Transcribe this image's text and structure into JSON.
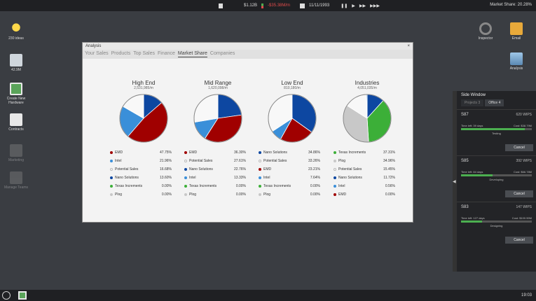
{
  "topbar": {
    "money": "$1.12B",
    "change": "-$35.38M/m",
    "date": "11/11/1993",
    "market_share": "Market Share: 20.28%"
  },
  "desktop": {
    "left": [
      {
        "label": "230 ideas",
        "icon": "lightbulb-icon"
      },
      {
        "label": "42.9M",
        "icon": "factory-icon"
      },
      {
        "label": "Create New Hardware",
        "icon": "hardware-icon"
      },
      {
        "label": "Contracts",
        "icon": "contracts-icon"
      },
      {
        "label": "Marketing",
        "icon": "megaphone-icon"
      },
      {
        "label": "Manage Teams",
        "icon": "teams-icon"
      }
    ],
    "right": [
      {
        "label": "Inspector",
        "icon": "magnifier-icon"
      },
      {
        "label": "Email",
        "icon": "mail-icon"
      },
      {
        "label": "Analysis",
        "icon": "analysis-icon"
      }
    ]
  },
  "window": {
    "title": "Analysis",
    "close": "×",
    "tabs": [
      "Your Sales",
      "Products",
      "Top Sales",
      "Finance",
      "Market Share",
      "Companies"
    ],
    "active_tab": 4
  },
  "colors": {
    "red": "#a00000",
    "blue": "#0d47a1",
    "lightblue": "#3a8fd9",
    "white": "#f8f8f8",
    "green": "#3caf38",
    "grey": "#c8c8c8"
  },
  "charts": [
    {
      "title": "High End",
      "subtitle": "2,531,985/m",
      "legend": [
        {
          "name": "EMD",
          "value": "47.75%",
          "color": "red",
          "v": 47.75
        },
        {
          "name": "Intel",
          "value": "21.96%",
          "color": "lightblue",
          "v": 21.96
        },
        {
          "name": "Potential Sales",
          "value": "16.68%",
          "color": "white",
          "v": 16.68
        },
        {
          "name": "Nano Solutions",
          "value": "13.60%",
          "color": "blue",
          "v": 13.6
        },
        {
          "name": "Texas Increments",
          "value": "0.00%",
          "color": "green",
          "v": 0
        },
        {
          "name": "Plog",
          "value": "0.00%",
          "color": "grey",
          "v": 0
        }
      ],
      "order": [
        "Nano Solutions",
        "EMD",
        "Intel",
        "Potential Sales"
      ]
    },
    {
      "title": "Mid Range",
      "subtitle": "1,620,098/m",
      "legend": [
        {
          "name": "EMD",
          "value": "36.30%",
          "color": "red",
          "v": 36.3
        },
        {
          "name": "Potential Sales",
          "value": "27.61%",
          "color": "white",
          "v": 27.61
        },
        {
          "name": "Nano Solutions",
          "value": "22.76%",
          "color": "blue",
          "v": 22.76
        },
        {
          "name": "Intel",
          "value": "13.33%",
          "color": "lightblue",
          "v": 13.33
        },
        {
          "name": "Texas Increments",
          "value": "0.00%",
          "color": "green",
          "v": 0
        },
        {
          "name": "Plog",
          "value": "0.00%",
          "color": "grey",
          "v": 0
        }
      ],
      "order": [
        "Nano Solutions",
        "EMD",
        "Intel",
        "Potential Sales"
      ]
    },
    {
      "title": "Low End",
      "subtitle": "810,180/m",
      "legend": [
        {
          "name": "Nano Solutions",
          "value": "34.86%",
          "color": "blue",
          "v": 34.86
        },
        {
          "name": "Potential Sales",
          "value": "33.26%",
          "color": "white",
          "v": 33.26
        },
        {
          "name": "EMD",
          "value": "23.21%",
          "color": "red",
          "v": 23.21
        },
        {
          "name": "Intel",
          "value": "7.64%",
          "color": "lightblue",
          "v": 7.64
        },
        {
          "name": "Texas Increments",
          "value": "0.00%",
          "color": "green",
          "v": 0
        },
        {
          "name": "Plog",
          "value": "0.00%",
          "color": "grey",
          "v": 0
        }
      ],
      "order": [
        "Nano Solutions",
        "EMD",
        "Intel",
        "Potential Sales"
      ]
    },
    {
      "title": "Industries",
      "subtitle": "4,051,035/m",
      "legend": [
        {
          "name": "Texas Increments",
          "value": "37.31%",
          "color": "green",
          "v": 37.31
        },
        {
          "name": "Plog",
          "value": "34.96%",
          "color": "grey",
          "v": 34.96
        },
        {
          "name": "Potential Sales",
          "value": "15.45%",
          "color": "white",
          "v": 15.45
        },
        {
          "name": "Nano Solutions",
          "value": "11.72%",
          "color": "blue",
          "v": 11.72
        },
        {
          "name": "Intel",
          "value": "0.56%",
          "color": "lightblue",
          "v": 0.56
        },
        {
          "name": "EMD",
          "value": "0.00%",
          "color": "red",
          "v": 0
        }
      ],
      "order": [
        "Nano Solutions",
        "Texas Increments",
        "Plog",
        "Potential Sales",
        "Intel"
      ]
    }
  ],
  "side_window": {
    "title": "Side Window",
    "tabs": [
      "Projects 3",
      "Office 4"
    ],
    "jobs": [
      {
        "name": "S87",
        "work": "620 WIPS",
        "time": "Time left: 39 days",
        "cost": "Cost: $38.79M",
        "phase": "Testing",
        "progress": 0.9,
        "cancel": "Cancel"
      },
      {
        "name": "S85",
        "work": "392 WIPS",
        "time": "Time left: 84 days",
        "cost": "Cost: $66.78M",
        "phase": "Developing",
        "progress": 0.45,
        "cancel": "Cancel"
      },
      {
        "name": "S83",
        "work": "147 WIPS",
        "time": "Time left: 127 days",
        "cost": "Cost: $100.59M",
        "phase": "Designing",
        "progress": 0.3,
        "cancel": "Cancel"
      }
    ]
  },
  "clock": "19:03"
}
